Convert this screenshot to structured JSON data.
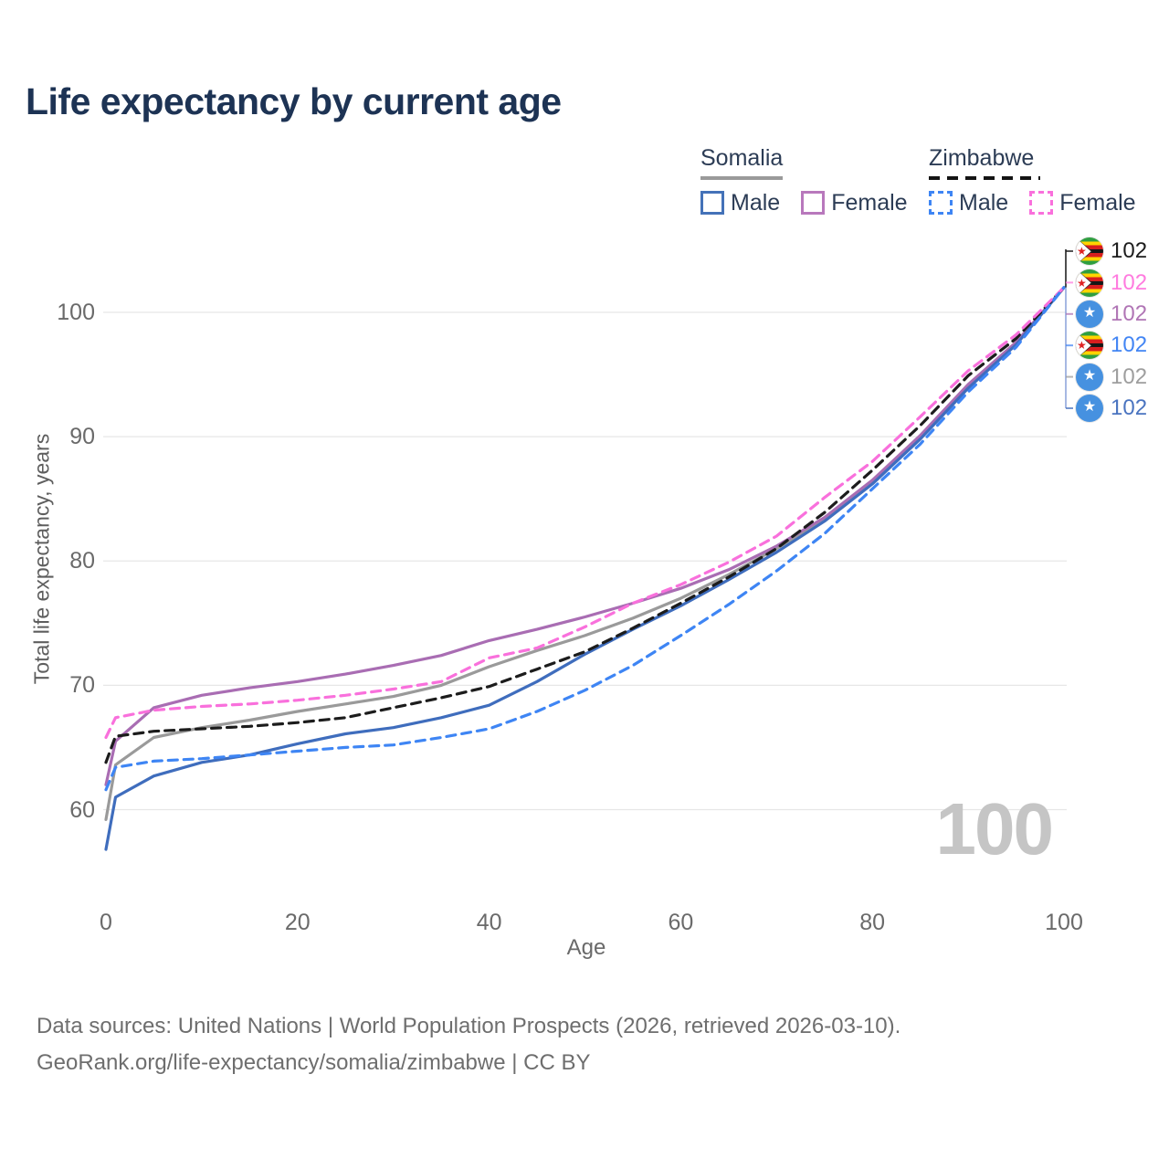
{
  "page": {
    "title": "Life expectancy by current age",
    "watermark": "100"
  },
  "legend": {
    "groups": [
      {
        "country": "Somalia",
        "underline": "solid",
        "underline_color": "#9a9a9a",
        "items": [
          {
            "label": "Male",
            "color": "#4472b8",
            "dash": "solid"
          },
          {
            "label": "Female",
            "color": "#b878bc",
            "dash": "solid"
          }
        ]
      },
      {
        "country": "Zimbabwe",
        "underline": "dashed",
        "underline_color": "#141414",
        "items": [
          {
            "label": "Male",
            "color": "#3e85f4",
            "dash": "dashed"
          },
          {
            "label": "Female",
            "color": "#f970dc",
            "dash": "dashed"
          }
        ]
      }
    ]
  },
  "y_axis": {
    "label": "Total life expectancy, years",
    "ticks": [
      60,
      70,
      80,
      90,
      100
    ]
  },
  "x_axis": {
    "label": "Age",
    "ticks": [
      0,
      20,
      40,
      60,
      80,
      100
    ]
  },
  "end_labels": [
    {
      "flag": "zimbabwe",
      "series": "Zimbabwe",
      "value": "102",
      "color": "#1c1c1c"
    },
    {
      "flag": "zimbabwe",
      "series": "Zimbabwe Female",
      "value": "102",
      "color": "#ff7bdf"
    },
    {
      "flag": "somalia",
      "series": "Somalia Female",
      "value": "102",
      "color": "#b075b5"
    },
    {
      "flag": "zimbabwe",
      "series": "Zimbabwe Male",
      "value": "102",
      "color": "#4285f4"
    },
    {
      "flag": "somalia",
      "series": "Somalia",
      "value": "102",
      "color": "#9e9e9e"
    },
    {
      "flag": "somalia",
      "series": "Somalia Male",
      "value": "102",
      "color": "#4a74c0"
    }
  ],
  "footer": {
    "line1": "Data sources: United Nations | World Population Prospects (2026, retrieved 2026-03-10).",
    "line2": "GeoRank.org/life-expectancy/somalia/zimbabwe | CC BY"
  },
  "chart_data": {
    "type": "line",
    "title": "Life expectancy by current age",
    "xlabel": "Age",
    "ylabel": "Total life expectancy, years",
    "xlim": [
      0,
      100
    ],
    "ylim": [
      56,
      103
    ],
    "grid": "horizontal",
    "legend_position": "top-right",
    "x": [
      0,
      1,
      5,
      10,
      15,
      20,
      25,
      30,
      35,
      40,
      45,
      50,
      55,
      60,
      65,
      70,
      75,
      80,
      85,
      90,
      95,
      100
    ],
    "series": [
      {
        "id": "somalia_both",
        "name": "Somalia",
        "country": "Somalia",
        "sex": "both",
        "color": "#9a9a9a",
        "dash": "solid",
        "values": [
          59.2,
          63.6,
          65.8,
          66.6,
          67.2,
          67.9,
          68.5,
          69.1,
          70.0,
          71.5,
          72.8,
          74.0,
          75.4,
          77.0,
          78.9,
          81.0,
          83.3,
          86.4,
          89.9,
          94.0,
          97.5,
          102
        ]
      },
      {
        "id": "somalia_female",
        "name": "Somalia Female",
        "country": "Somalia",
        "sex": "female",
        "color": "#a96db3",
        "dash": "solid",
        "values": [
          62.0,
          65.5,
          68.2,
          69.2,
          69.8,
          70.3,
          70.9,
          71.6,
          72.4,
          73.6,
          74.5,
          75.5,
          76.6,
          77.8,
          79.3,
          81.2,
          83.5,
          86.5,
          90.1,
          94.2,
          97.6,
          102
        ]
      },
      {
        "id": "somalia_male",
        "name": "Somalia Male",
        "country": "Somalia",
        "sex": "male",
        "color": "#3f6dbd",
        "dash": "solid",
        "values": [
          56.8,
          61.0,
          62.7,
          63.8,
          64.4,
          65.3,
          66.1,
          66.6,
          67.4,
          68.4,
          70.3,
          72.5,
          74.5,
          76.4,
          78.5,
          80.7,
          83.2,
          86.2,
          89.8,
          93.9,
          97.4,
          102
        ]
      },
      {
        "id": "zimbabwe_both",
        "name": "Zimbabwe",
        "country": "Zimbabwe",
        "sex": "both",
        "color": "#1c1c1c",
        "dash": "dashed",
        "values": [
          63.8,
          65.9,
          66.3,
          66.5,
          66.7,
          67.0,
          67.4,
          68.2,
          69.0,
          69.9,
          71.3,
          72.7,
          74.6,
          76.6,
          78.7,
          81.0,
          83.9,
          87.3,
          90.9,
          94.9,
          97.9,
          102
        ]
      },
      {
        "id": "zimbabwe_female",
        "name": "Zimbabwe Female",
        "country": "Zimbabwe",
        "sex": "female",
        "color": "#f970dc",
        "dash": "dashed",
        "values": [
          65.8,
          67.4,
          68.0,
          68.3,
          68.5,
          68.8,
          69.2,
          69.7,
          70.3,
          72.2,
          73.0,
          74.7,
          76.6,
          78.1,
          79.9,
          82.0,
          85.1,
          88.0,
          91.6,
          95.3,
          98.2,
          102
        ]
      },
      {
        "id": "zimbabwe_male",
        "name": "Zimbabwe Male",
        "country": "Zimbabwe",
        "sex": "male",
        "color": "#3e85f4",
        "dash": "dashed",
        "values": [
          61.6,
          63.4,
          63.9,
          64.1,
          64.4,
          64.7,
          65.0,
          65.2,
          65.8,
          66.5,
          67.9,
          69.6,
          71.6,
          74.0,
          76.5,
          79.2,
          82.2,
          85.8,
          89.4,
          93.6,
          97.2,
          102
        ]
      }
    ],
    "end_value_label": "102"
  }
}
